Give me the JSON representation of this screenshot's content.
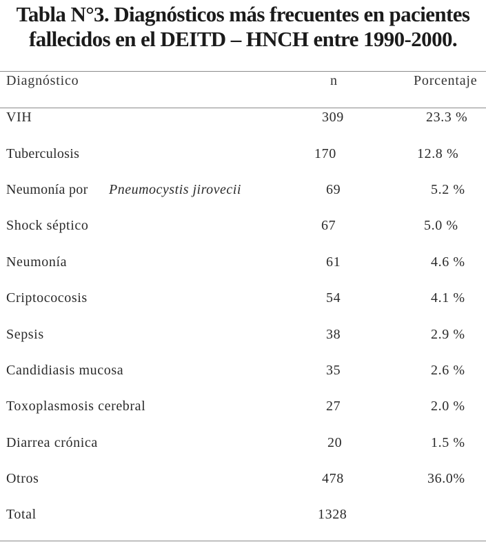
{
  "title": {
    "line1": "Tabla N°3. Diagnósticos más frecuentes en pacientes",
    "line2": "fallecidos en el DEITD – HNCH entre 1990-2000."
  },
  "table": {
    "headers": {
      "diagnostico": "Diagnóstico",
      "n": "n",
      "porcentaje": "Porcentaje"
    },
    "rows": [
      {
        "diagnostico": "VIH",
        "n": "309",
        "porcentaje": "23.3 %"
      },
      {
        "diagnostico": "Tuberculosis",
        "n": "170",
        "porcentaje": "12.8 %"
      },
      {
        "diagnostico": "Neumonía por",
        "diagnostico_italic": "Pneumocystis jirovecii",
        "n": "69",
        "porcentaje": "5.2 %"
      },
      {
        "diagnostico": "Shock séptico",
        "n": "67",
        "porcentaje": "5.0 %"
      },
      {
        "diagnostico": "Neumonía",
        "n": "61",
        "porcentaje": "4.6 %"
      },
      {
        "diagnostico": "Criptococosis",
        "n": "54",
        "porcentaje": "4.1 %"
      },
      {
        "diagnostico": "Sepsis",
        "n": "38",
        "porcentaje": "2.9 %"
      },
      {
        "diagnostico": "Candidiasis mucosa",
        "n": "35",
        "porcentaje": "2.6 %"
      },
      {
        "diagnostico": "Toxoplasmosis cerebral",
        "n": "27",
        "porcentaje": "2.0 %"
      },
      {
        "diagnostico": "Diarrea crónica",
        "n": "20",
        "porcentaje": "1.5 %"
      },
      {
        "diagnostico": "Otros",
        "n": "478",
        "porcentaje": "36.0%"
      },
      {
        "diagnostico": "Total",
        "n": "1328",
        "porcentaje": ""
      }
    ]
  }
}
